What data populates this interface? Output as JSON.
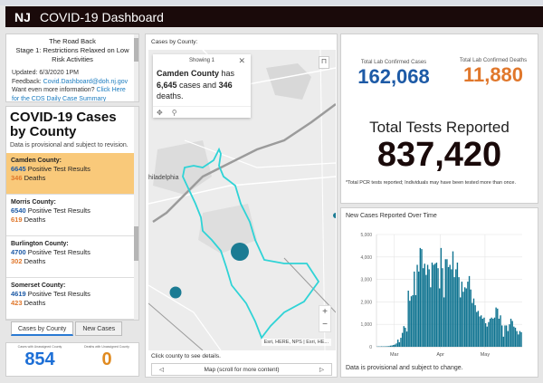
{
  "header": {
    "logo": "NJ",
    "title": "COVID-19 Dashboard"
  },
  "road_back": {
    "title_line1": "The Road Back",
    "title_line2": "Stage 1: Restrictions Relaxed on Low Risk Activities",
    "updated": "Updated: 6/3/2020 1PM",
    "feedback_label": "Feedback: ",
    "feedback_email": "Covid.Dashboard@doh.nj.gov",
    "more_info": "Want even more information?",
    "more_info_link": "Click Here for the CDS Daily Case Summary"
  },
  "county_list": {
    "title": "COVID-19 Cases by County",
    "subtitle": "Data is provisional and subject to revision.",
    "positive_suffix": " Positive Test Results",
    "deaths_suffix": " Deaths",
    "counties": [
      {
        "name": "Camden County:",
        "positive": "6645",
        "deaths": "346",
        "selected": true
      },
      {
        "name": "Morris County:",
        "positive": "6540",
        "deaths": "619",
        "selected": false
      },
      {
        "name": "Burlington County:",
        "positive": "4700",
        "deaths": "302",
        "selected": false
      },
      {
        "name": "Somerset County:",
        "positive": "4619",
        "deaths": "423",
        "selected": false
      }
    ]
  },
  "tabs": [
    {
      "label": "Cases by County",
      "active": true
    },
    {
      "label": "New Cases",
      "active": false
    }
  ],
  "unassigned": {
    "cases_label": "Cases with Unassigned County",
    "cases_value": "854",
    "deaths_label": "Deaths with Unassigned County",
    "deaths_value": "0"
  },
  "map": {
    "title": "Cases by County:",
    "popup": {
      "header": "Showing 1",
      "county": "Camden County",
      "has": " has ",
      "cases": "6,645",
      "cases_and": " cases and ",
      "deaths": "346",
      "deaths_suffix": " deaths."
    },
    "city_label": "hiladelphia",
    "attribution": "Esri, HERE, NPS | Esri, HE...",
    "zoom_in": "+",
    "zoom_out": "−",
    "footer": "Click county to see details.",
    "nav_label": "Map (scroll for more content)",
    "nav_prev": "◁",
    "nav_next": "▷"
  },
  "totals": {
    "cases_label": "Total Lab Confirmed Cases",
    "cases_value": "162,068",
    "deaths_label": "Total Lab Confirmed Deaths",
    "deaths_value": "11,880",
    "tests_title": "Total Tests Reported",
    "tests_value": "837,420",
    "tests_note": "*Total PCR tests reported; Individuals may have been tested more than once."
  },
  "colors": {
    "blue": "#1d5aa6",
    "orange": "#e0772b",
    "bar": "#0e7390",
    "highlight": "#f9c97a",
    "county_outline": "#2fd3d6"
  },
  "chart_data": {
    "type": "bar",
    "title": "New Cases Reported Over Time",
    "xlabel": "",
    "ylabel": "",
    "ylim": [
      0,
      5000
    ],
    "yticks": [
      "0",
      "1,000",
      "2,000",
      "3,000",
      "4,000",
      "5,000"
    ],
    "ytick_values": [
      0,
      1000,
      2000,
      3000,
      4000,
      5000
    ],
    "xticks": [
      {
        "label": "Mar",
        "index": 12
      },
      {
        "label": "Apr",
        "index": 43
      },
      {
        "label": "May",
        "index": 73
      }
    ],
    "footer": "Data is provisional and subject to change.",
    "values": [
      10,
      15,
      15,
      20,
      15,
      20,
      20,
      25,
      30,
      50,
      60,
      80,
      100,
      150,
      320,
      200,
      400,
      620,
      920,
      850,
      680,
      2500,
      2050,
      2250,
      2300,
      3350,
      2300,
      3650,
      3350,
      4400,
      4350,
      3500,
      3700,
      3200,
      3650,
      3450,
      2650,
      3750,
      3650,
      3700,
      3750,
      3500,
      2600,
      4400,
      3500,
      2200,
      3900,
      3900,
      3550,
      3650,
      3450,
      4250,
      3100,
      3450,
      3750,
      3100,
      2200,
      2900,
      2450,
      2650,
      2600,
      2900,
      3150,
      2550,
      1950,
      2150,
      1850,
      1550,
      1600,
      1350,
      1400,
      1250,
      1300,
      1050,
      900,
      1100,
      1250,
      1300,
      1250,
      1300,
      1750,
      1700,
      1250,
      1400,
      950,
      450,
      950,
      950,
      700,
      1000,
      1250,
      1150,
      900,
      850,
      700,
      550,
      700,
      650
    ]
  }
}
